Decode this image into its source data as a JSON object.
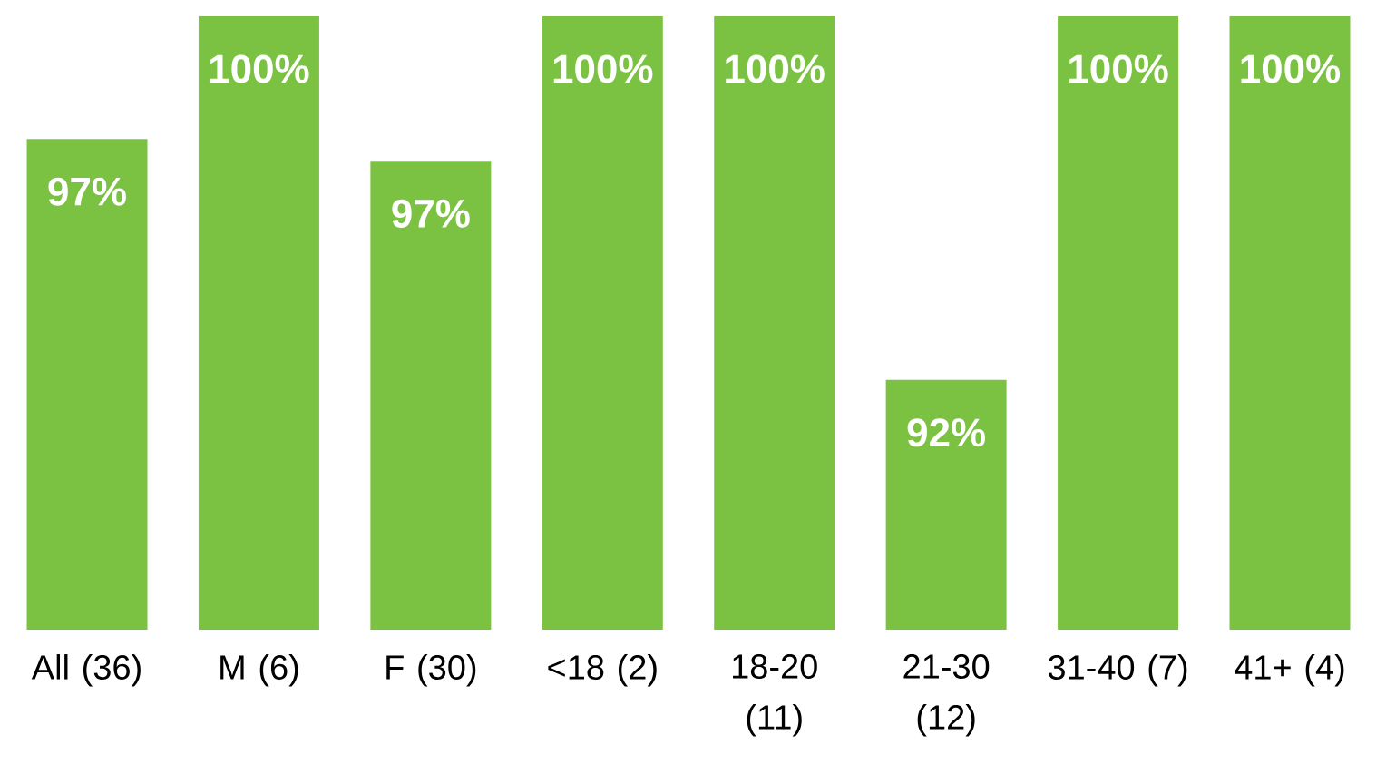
{
  "chart_data": {
    "type": "bar",
    "categories": [
      "All (36)",
      "M (6)",
      "F (30)",
      "<18 (2)",
      "18-20 (11)",
      "21-30 (12)",
      "31-40 (7)",
      "41+ (4)"
    ],
    "values": [
      97.2,
      100,
      96.7,
      100,
      100,
      91.7,
      100,
      100
    ],
    "value_labels": [
      "97%",
      "100%",
      "97%",
      "100%",
      "100%",
      "92%",
      "100%",
      "100%"
    ],
    "color": "#7cc242",
    "ylim": [
      86,
      100
    ],
    "tick_labels": "x"
  }
}
